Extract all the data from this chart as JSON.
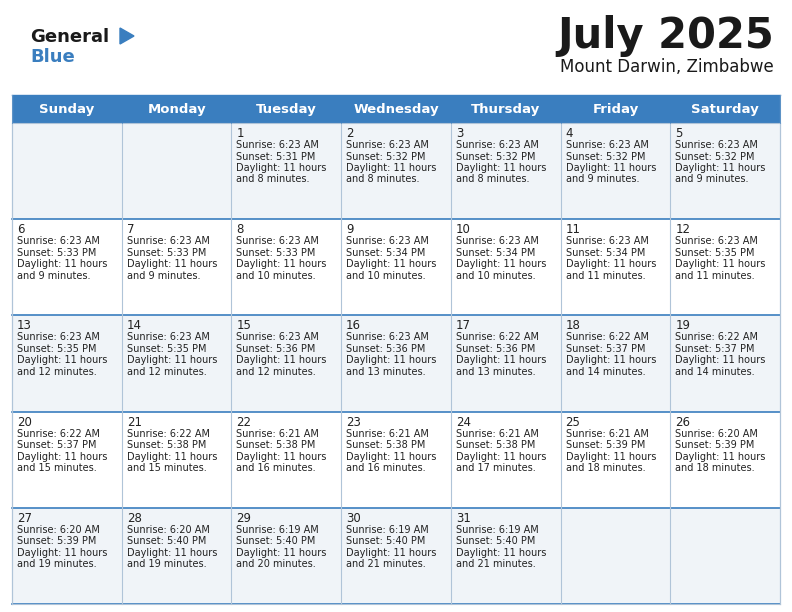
{
  "title": "July 2025",
  "subtitle": "Mount Darwin, Zimbabwe",
  "header_color": "#3a7ebf",
  "header_text_color": "#ffffff",
  "days_of_week": [
    "Sunday",
    "Monday",
    "Tuesday",
    "Wednesday",
    "Thursday",
    "Friday",
    "Saturday"
  ],
  "bg_color": "#ffffff",
  "cell_even_color": "#f0f4f8",
  "cell_odd_color": "#ffffff",
  "grid_color": "#b0c4d8",
  "separator_color": "#3a7ebf",
  "calendar": [
    [
      {
        "day": "",
        "lines": []
      },
      {
        "day": "",
        "lines": []
      },
      {
        "day": "1",
        "lines": [
          "Sunrise: 6:23 AM",
          "Sunset: 5:31 PM",
          "Daylight: 11 hours",
          "and 8 minutes."
        ]
      },
      {
        "day": "2",
        "lines": [
          "Sunrise: 6:23 AM",
          "Sunset: 5:32 PM",
          "Daylight: 11 hours",
          "and 8 minutes."
        ]
      },
      {
        "day": "3",
        "lines": [
          "Sunrise: 6:23 AM",
          "Sunset: 5:32 PM",
          "Daylight: 11 hours",
          "and 8 minutes."
        ]
      },
      {
        "day": "4",
        "lines": [
          "Sunrise: 6:23 AM",
          "Sunset: 5:32 PM",
          "Daylight: 11 hours",
          "and 9 minutes."
        ]
      },
      {
        "day": "5",
        "lines": [
          "Sunrise: 6:23 AM",
          "Sunset: 5:32 PM",
          "Daylight: 11 hours",
          "and 9 minutes."
        ]
      }
    ],
    [
      {
        "day": "6",
        "lines": [
          "Sunrise: 6:23 AM",
          "Sunset: 5:33 PM",
          "Daylight: 11 hours",
          "and 9 minutes."
        ]
      },
      {
        "day": "7",
        "lines": [
          "Sunrise: 6:23 AM",
          "Sunset: 5:33 PM",
          "Daylight: 11 hours",
          "and 9 minutes."
        ]
      },
      {
        "day": "8",
        "lines": [
          "Sunrise: 6:23 AM",
          "Sunset: 5:33 PM",
          "Daylight: 11 hours",
          "and 10 minutes."
        ]
      },
      {
        "day": "9",
        "lines": [
          "Sunrise: 6:23 AM",
          "Sunset: 5:34 PM",
          "Daylight: 11 hours",
          "and 10 minutes."
        ]
      },
      {
        "day": "10",
        "lines": [
          "Sunrise: 6:23 AM",
          "Sunset: 5:34 PM",
          "Daylight: 11 hours",
          "and 10 minutes."
        ]
      },
      {
        "day": "11",
        "lines": [
          "Sunrise: 6:23 AM",
          "Sunset: 5:34 PM",
          "Daylight: 11 hours",
          "and 11 minutes."
        ]
      },
      {
        "day": "12",
        "lines": [
          "Sunrise: 6:23 AM",
          "Sunset: 5:35 PM",
          "Daylight: 11 hours",
          "and 11 minutes."
        ]
      }
    ],
    [
      {
        "day": "13",
        "lines": [
          "Sunrise: 6:23 AM",
          "Sunset: 5:35 PM",
          "Daylight: 11 hours",
          "and 12 minutes."
        ]
      },
      {
        "day": "14",
        "lines": [
          "Sunrise: 6:23 AM",
          "Sunset: 5:35 PM",
          "Daylight: 11 hours",
          "and 12 minutes."
        ]
      },
      {
        "day": "15",
        "lines": [
          "Sunrise: 6:23 AM",
          "Sunset: 5:36 PM",
          "Daylight: 11 hours",
          "and 12 minutes."
        ]
      },
      {
        "day": "16",
        "lines": [
          "Sunrise: 6:23 AM",
          "Sunset: 5:36 PM",
          "Daylight: 11 hours",
          "and 13 minutes."
        ]
      },
      {
        "day": "17",
        "lines": [
          "Sunrise: 6:22 AM",
          "Sunset: 5:36 PM",
          "Daylight: 11 hours",
          "and 13 minutes."
        ]
      },
      {
        "day": "18",
        "lines": [
          "Sunrise: 6:22 AM",
          "Sunset: 5:37 PM",
          "Daylight: 11 hours",
          "and 14 minutes."
        ]
      },
      {
        "day": "19",
        "lines": [
          "Sunrise: 6:22 AM",
          "Sunset: 5:37 PM",
          "Daylight: 11 hours",
          "and 14 minutes."
        ]
      }
    ],
    [
      {
        "day": "20",
        "lines": [
          "Sunrise: 6:22 AM",
          "Sunset: 5:37 PM",
          "Daylight: 11 hours",
          "and 15 minutes."
        ]
      },
      {
        "day": "21",
        "lines": [
          "Sunrise: 6:22 AM",
          "Sunset: 5:38 PM",
          "Daylight: 11 hours",
          "and 15 minutes."
        ]
      },
      {
        "day": "22",
        "lines": [
          "Sunrise: 6:21 AM",
          "Sunset: 5:38 PM",
          "Daylight: 11 hours",
          "and 16 minutes."
        ]
      },
      {
        "day": "23",
        "lines": [
          "Sunrise: 6:21 AM",
          "Sunset: 5:38 PM",
          "Daylight: 11 hours",
          "and 16 minutes."
        ]
      },
      {
        "day": "24",
        "lines": [
          "Sunrise: 6:21 AM",
          "Sunset: 5:38 PM",
          "Daylight: 11 hours",
          "and 17 minutes."
        ]
      },
      {
        "day": "25",
        "lines": [
          "Sunrise: 6:21 AM",
          "Sunset: 5:39 PM",
          "Daylight: 11 hours",
          "and 18 minutes."
        ]
      },
      {
        "day": "26",
        "lines": [
          "Sunrise: 6:20 AM",
          "Sunset: 5:39 PM",
          "Daylight: 11 hours",
          "and 18 minutes."
        ]
      }
    ],
    [
      {
        "day": "27",
        "lines": [
          "Sunrise: 6:20 AM",
          "Sunset: 5:39 PM",
          "Daylight: 11 hours",
          "and 19 minutes."
        ]
      },
      {
        "day": "28",
        "lines": [
          "Sunrise: 6:20 AM",
          "Sunset: 5:40 PM",
          "Daylight: 11 hours",
          "and 19 minutes."
        ]
      },
      {
        "day": "29",
        "lines": [
          "Sunrise: 6:19 AM",
          "Sunset: 5:40 PM",
          "Daylight: 11 hours",
          "and 20 minutes."
        ]
      },
      {
        "day": "30",
        "lines": [
          "Sunrise: 6:19 AM",
          "Sunset: 5:40 PM",
          "Daylight: 11 hours",
          "and 21 minutes."
        ]
      },
      {
        "day": "31",
        "lines": [
          "Sunrise: 6:19 AM",
          "Sunset: 5:40 PM",
          "Daylight: 11 hours",
          "and 21 minutes."
        ]
      },
      {
        "day": "",
        "lines": []
      },
      {
        "day": "",
        "lines": []
      }
    ]
  ]
}
